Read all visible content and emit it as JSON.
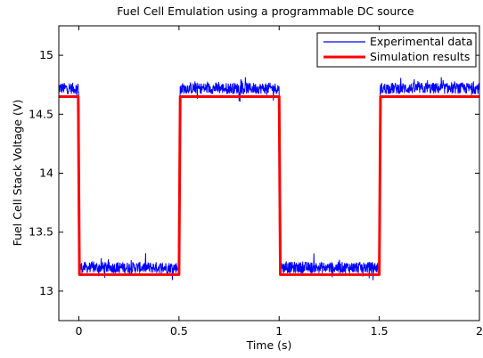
{
  "chart_data": {
    "type": "line",
    "title": "Fuel Cell Emulation using a programmable DC source",
    "xlabel": "Time (s)",
    "ylabel": "Fuel Cell Stack Voltage (V)",
    "xlim": [
      -0.1,
      2.0
    ],
    "ylim": [
      12.75,
      15.25
    ],
    "xticks": [
      0,
      0.5,
      1,
      1.5,
      2
    ],
    "xtick_labels": [
      "0",
      "0.5",
      "1",
      "1.5",
      "2"
    ],
    "yticks": [
      13,
      13.5,
      14,
      14.5,
      15
    ],
    "ytick_labels": [
      "13",
      "13.5",
      "14",
      "14.5",
      "15"
    ],
    "grid": false,
    "legend_position": "top-right",
    "series": [
      {
        "name": "Experimental data",
        "color": "#0000ff",
        "style": "noisy square wave",
        "x": [
          -0.1,
          0.0,
          0.005,
          0.5,
          0.505,
          1.0,
          1.005,
          1.5,
          1.505,
          2.0
        ],
        "y": [
          14.72,
          14.72,
          13.2,
          13.2,
          14.72,
          14.72,
          13.2,
          13.2,
          14.72,
          14.72
        ],
        "noise_amplitude": 0.08
      },
      {
        "name": "Simulation results",
        "color": "#ff0000",
        "style": "smooth square wave",
        "x": [
          -0.1,
          -0.003,
          0.003,
          0.5,
          0.506,
          1.0,
          1.006,
          1.5,
          1.506,
          2.0
        ],
        "y": [
          14.65,
          14.65,
          13.14,
          13.14,
          14.65,
          14.65,
          13.14,
          13.14,
          14.65,
          14.65
        ]
      }
    ]
  }
}
